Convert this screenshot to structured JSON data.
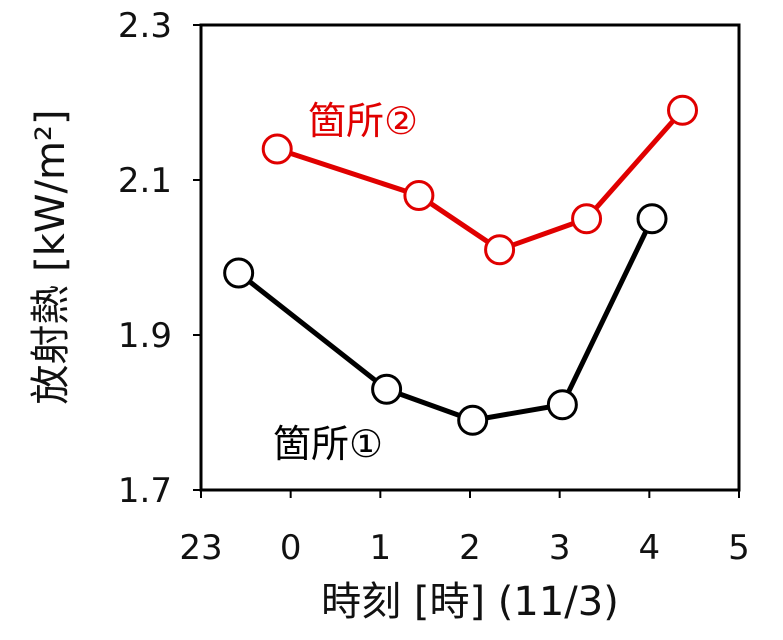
{
  "chart_data": {
    "type": "line",
    "xlabel": "時刻 [時] (11/3)",
    "ylabel": "放射熱 [kW/m²]",
    "xlim": [
      -1,
      5
    ],
    "ylim": [
      1.7,
      2.3
    ],
    "x_ticks": [
      {
        "value": -1,
        "label": "23"
      },
      {
        "value": 0,
        "label": "0"
      },
      {
        "value": 1,
        "label": "1"
      },
      {
        "value": 2,
        "label": "2"
      },
      {
        "value": 3,
        "label": "3"
      },
      {
        "value": 4,
        "label": "4"
      },
      {
        "value": 5,
        "label": "5"
      }
    ],
    "y_ticks": [
      {
        "value": 1.7,
        "label": "1.7"
      },
      {
        "value": 1.9,
        "label": "1.9"
      },
      {
        "value": 2.1,
        "label": "2.1"
      },
      {
        "value": 2.3,
        "label": "2.3"
      }
    ],
    "grid": false,
    "series": [
      {
        "name": "箇所①",
        "color": "#000000",
        "x": [
          -0.58,
          1.07,
          2.03,
          3.03,
          4.03
        ],
        "y": [
          1.98,
          1.83,
          1.79,
          1.81,
          2.05
        ]
      },
      {
        "name": "箇所②",
        "color": "#e00000",
        "x": [
          -0.15,
          1.43,
          2.33,
          3.3,
          4.37
        ],
        "y": [
          2.14,
          2.08,
          2.01,
          2.05,
          2.19
        ]
      }
    ]
  }
}
